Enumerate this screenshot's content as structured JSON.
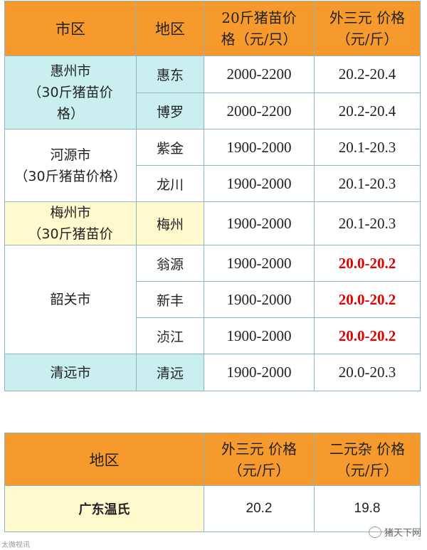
{
  "table1": {
    "headers": [
      "市区",
      "地区",
      "20斤猪苗价格（元/只）",
      "外三元 价格（元/斤）"
    ],
    "header_col3_line1": "20斤猪苗价",
    "header_col3_line2": "格（元/只）",
    "header_col4_line1": "外三元 价格",
    "header_col4_line2": "（元/斤）",
    "rows": [
      {
        "city": "惠州市（30斤猪苗价格）",
        "city_lines": [
          "惠州市",
          "（30斤猪苗价",
          "格）"
        ],
        "district": "惠东",
        "piglet": "2000-2200",
        "price": "20.2-20.4"
      },
      {
        "district": "博罗",
        "piglet": "2000-2200",
        "price": "20.2-20.4"
      },
      {
        "city": "河源市（30斤猪苗价格）",
        "city_lines": [
          "河源市",
          "（30斤猪苗价格）"
        ],
        "district": "紫金",
        "piglet": "1900-2000",
        "price": "20.1-20.3"
      },
      {
        "district": "龙川",
        "piglet": "1900-2000",
        "price": "20.1-20.3"
      },
      {
        "city": "梅州市（30斤猪苗价",
        "city_lines": [
          "梅州市",
          "（30斤猪苗价"
        ],
        "district": "梅州",
        "piglet": "1900-2000",
        "price": "20.1-20.3"
      },
      {
        "city": "韶关市",
        "district": "翁源",
        "piglet": "1900-2000",
        "price": "20.0-20.2"
      },
      {
        "district": "新丰",
        "piglet": "1900-2000",
        "price": "20.0-20.2"
      },
      {
        "district": "浈江",
        "piglet": "1900-2000",
        "price": "20.0-20.2"
      },
      {
        "city": "清远市",
        "district": "清远",
        "piglet": "1900-2000",
        "price": "20.0-20.3"
      }
    ]
  },
  "table2": {
    "header_region": "地区",
    "header_col2_line1": "外三元 价格",
    "header_col2_line2": "（元/斤）",
    "header_col3_line1": "二元杂 价格",
    "header_col3_line2": "（元/斤）",
    "row": {
      "region": "广东温氏",
      "waisanyuan": "20.2",
      "eryuanza": "19.8"
    }
  },
  "watermark_left": "太微视讯",
  "watermark_right": "猪天下网",
  "colors": {
    "header": "#f79a2e",
    "cyan": "#c9efef",
    "yellow": "#fffacd",
    "highlight": "#e00000"
  }
}
